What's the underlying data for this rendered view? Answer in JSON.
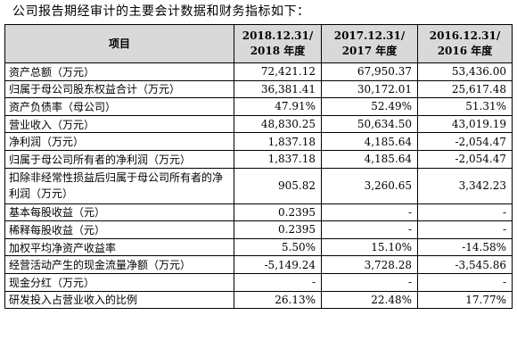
{
  "intro": "公司报告期经审计的主要会计数据和财务指标如下：",
  "table": {
    "header": {
      "item": "项目",
      "col1": [
        "2018.12.31/",
        "2018 年度"
      ],
      "col2": [
        "2017.12.31/",
        "2017 年度"
      ],
      "col3": [
        "2016.12.31/",
        "2016 年度"
      ]
    },
    "rows": [
      {
        "label": "资产总额（万元）",
        "v1": "72,421.12",
        "v2": "67,950.37",
        "v3": "53,436.00"
      },
      {
        "label": "归属于母公司股东权益合计（万元）",
        "v1": "36,381.41",
        "v2": "30,172.01",
        "v3": "25,617.48"
      },
      {
        "label": "资产负债率（母公司）",
        "v1": "47.91%",
        "v2": "52.49%",
        "v3": "51.31%"
      },
      {
        "label": "营业收入（万元）",
        "v1": "48,830.25",
        "v2": "50,634.50",
        "v3": "43,019.19"
      },
      {
        "label": "净利润（万元）",
        "v1": "1,837.18",
        "v2": "4,185.64",
        "v3": "-2,054.47"
      },
      {
        "label": "归属于母公司所有者的净利润（万元）",
        "v1": "1,837.18",
        "v2": "4,185.64",
        "v3": "-2,054.47"
      },
      {
        "label": "扣除非经常性损益后归属于母公司所有者的净利润（万元）",
        "v1": "905.82",
        "v2": "3,260.65",
        "v3": "3,342.23"
      },
      {
        "label": "基本每股收益（元）",
        "v1": "0.2395",
        "v2": "-",
        "v3": "-"
      },
      {
        "label": "稀释每股收益（元）",
        "v1": "0.2395",
        "v2": "-",
        "v3": "-"
      },
      {
        "label": "加权平均净资产收益率",
        "v1": "5.50%",
        "v2": "15.10%",
        "v3": "-14.58%"
      },
      {
        "label": "经营活动产生的现金流量净额（万元）",
        "v1": "-5,149.24",
        "v2": "3,728.28",
        "v3": "-3,545.86"
      },
      {
        "label": "现金分红（万元）",
        "v1": "-",
        "v2": "-",
        "v3": "-"
      },
      {
        "label": "研发投入占营业收入的比例",
        "v1": "26.13%",
        "v2": "22.48%",
        "v3": "17.77%"
      }
    ]
  }
}
